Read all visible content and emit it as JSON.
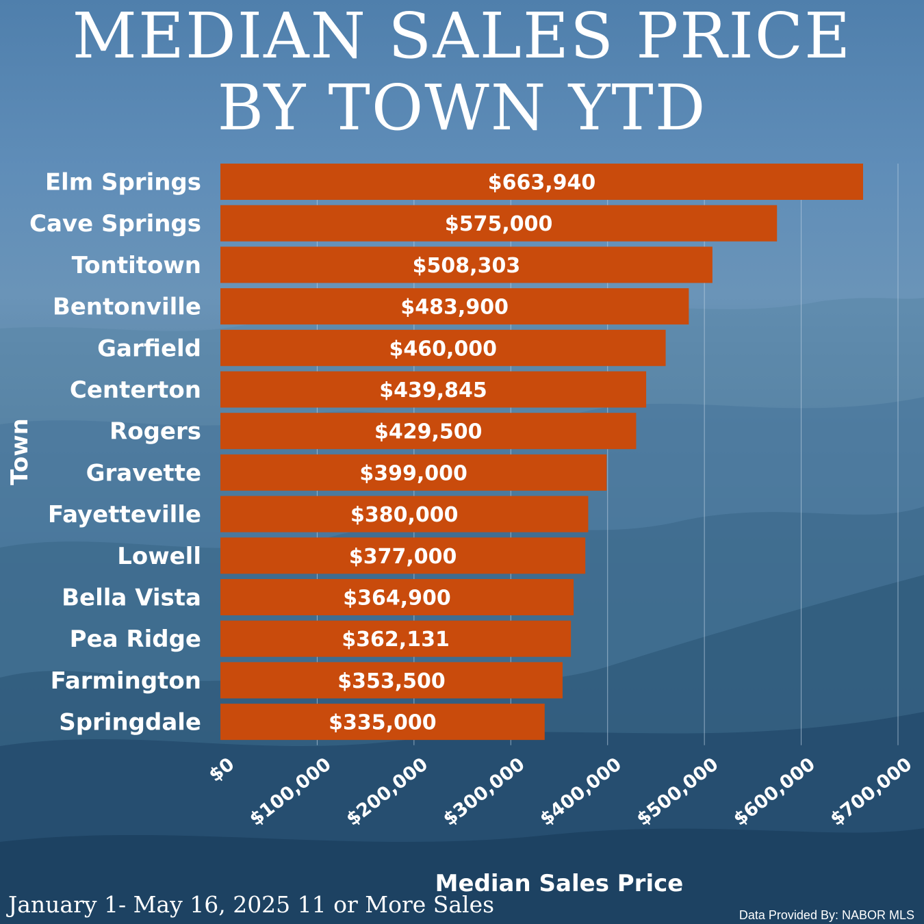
{
  "title_line1": "MEDIAN SALES PRICE",
  "title_line2": "BY TOWN YTD",
  "footer_date": "January 1- May 16, 2025 11 or More Sales",
  "footer_source": "Data Provided By: NABOR MLS",
  "colors": {
    "bar": "#c94b0c",
    "text": "#ffffff",
    "gridline": "#b9cde0"
  },
  "chart_data": {
    "type": "bar",
    "orientation": "horizontal",
    "title": "MEDIAN SALES PRICE BY TOWN YTD",
    "xlabel": "Median Sales Price",
    "ylabel": "Town",
    "xlim": [
      0,
      700000
    ],
    "grid": true,
    "categories": [
      "Elm Springs",
      "Cave Springs",
      "Tontitown",
      "Bentonville",
      "Garfield",
      "Centerton",
      "Rogers",
      "Gravette",
      "Fayetteville",
      "Lowell",
      "Bella Vista",
      "Pea Ridge",
      "Farmington",
      "Springdale"
    ],
    "values": [
      663940,
      575000,
      508303,
      483900,
      460000,
      439845,
      429500,
      399000,
      380000,
      377000,
      364900,
      362131,
      353500,
      335000
    ],
    "value_labels": [
      "$663,940",
      "$575,000",
      "$508,303",
      "$483,900",
      "$460,000",
      "$439,845",
      "$429,500",
      "$399,000",
      "$380,000",
      "$377,000",
      "$364,900",
      "$362,131",
      "$353,500",
      "$335,000"
    ],
    "ticks": [
      0,
      100000,
      200000,
      300000,
      400000,
      500000,
      600000,
      700000
    ],
    "tick_labels": [
      "$0",
      "$100,000",
      "$200,000",
      "$300,000",
      "$400,000",
      "$500,000",
      "$600,000",
      "$700,000"
    ]
  }
}
